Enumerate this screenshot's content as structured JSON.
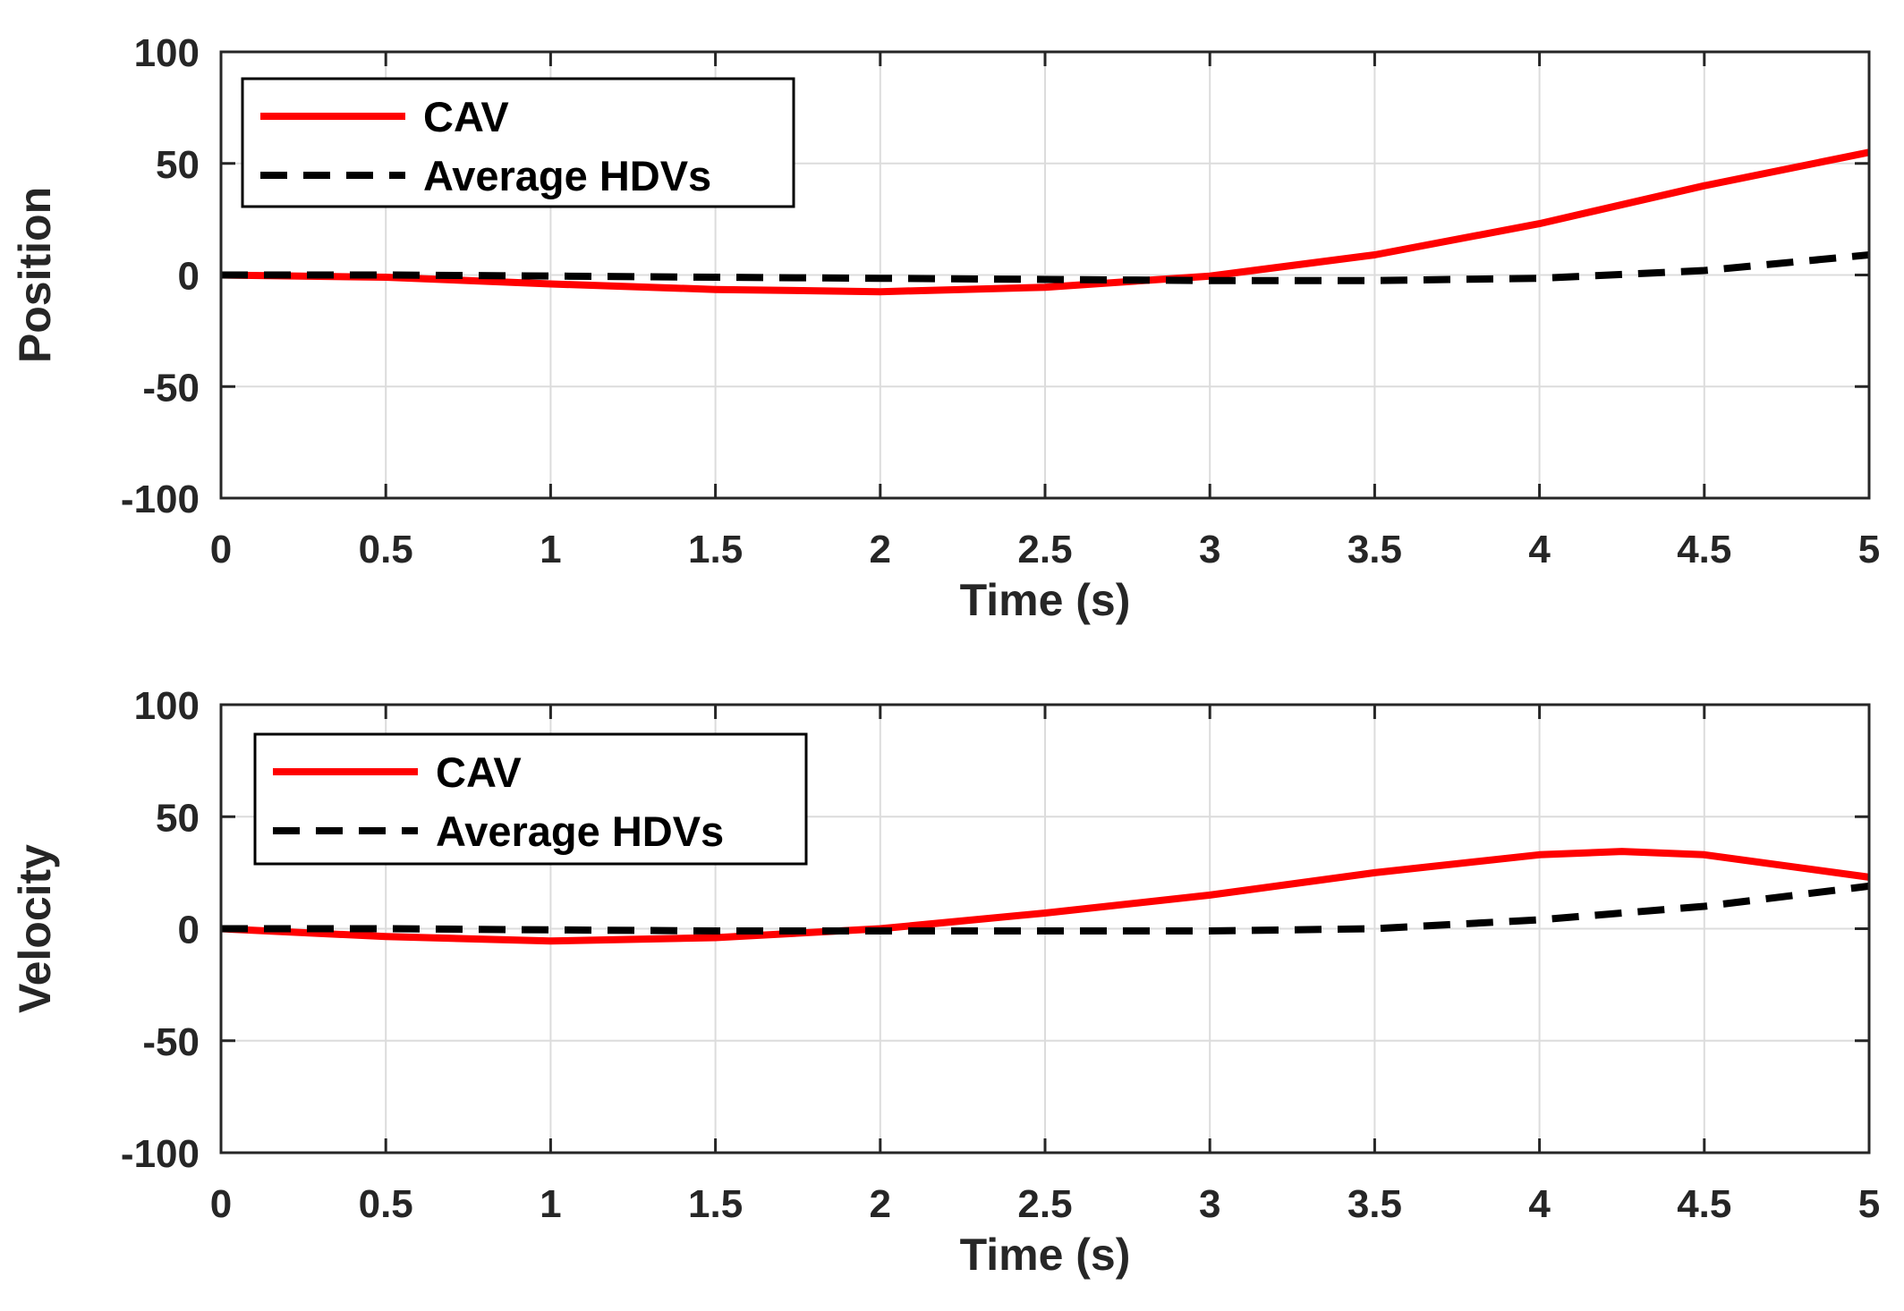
{
  "colors": {
    "cav": "#ff0000",
    "hdv": "#000000",
    "grid": "#dcdcdc",
    "axis": "#262626"
  },
  "chart_data": [
    {
      "type": "line",
      "title": "",
      "xlabel": "Time (s)",
      "ylabel": "Position",
      "xlim": [
        0,
        5
      ],
      "ylim": [
        -100,
        100
      ],
      "xticks": [
        0,
        0.5,
        1,
        1.5,
        2,
        2.5,
        3,
        3.5,
        4,
        4.5,
        5
      ],
      "xtick_labels": [
        "0",
        "0.5",
        "1",
        "1.5",
        "2",
        "2.5",
        "3",
        "3.5",
        "4",
        "4.5",
        "5"
      ],
      "yticks": [
        100,
        50,
        0,
        -50,
        -100
      ],
      "ytick_labels": [
        "100",
        "50",
        "0",
        "-50",
        "-100"
      ],
      "grid": true,
      "legend": "top-left",
      "series": [
        {
          "name": "CAV",
          "style": "solid",
          "color": "#ff0000",
          "x": [
            0,
            0.5,
            1,
            1.5,
            2,
            2.5,
            3,
            3.5,
            4,
            4.5,
            5
          ],
          "y": [
            0,
            -1,
            -4,
            -6.5,
            -7.5,
            -5.5,
            -0.5,
            9,
            23,
            40,
            55
          ]
        },
        {
          "name": "Average HDVs",
          "style": "dashed",
          "color": "#000000",
          "x": [
            0,
            0.5,
            1,
            1.5,
            2,
            2.5,
            3,
            3.5,
            4,
            4.5,
            5
          ],
          "y": [
            0,
            0,
            -0.5,
            -1,
            -1.5,
            -2,
            -2.5,
            -2.5,
            -1.5,
            2,
            9
          ]
        }
      ]
    },
    {
      "type": "line",
      "title": "",
      "xlabel": "Time (s)",
      "ylabel": "Velocity",
      "xlim": [
        0,
        5
      ],
      "ylim": [
        -100,
        100
      ],
      "xticks": [
        0,
        0.5,
        1,
        1.5,
        2,
        2.5,
        3,
        3.5,
        4,
        4.5,
        5
      ],
      "xtick_labels": [
        "0",
        "0.5",
        "1",
        "1.5",
        "2",
        "2.5",
        "3",
        "3.5",
        "4",
        "4.5",
        "5"
      ],
      "yticks": [
        100,
        50,
        0,
        -50,
        -100
      ],
      "ytick_labels": [
        "100",
        "50",
        "0",
        "-50",
        "-100"
      ],
      "grid": true,
      "legend": "top-left",
      "series": [
        {
          "name": "CAV",
          "style": "solid",
          "color": "#ff0000",
          "x": [
            0,
            0.5,
            1,
            1.5,
            2,
            2.5,
            3,
            3.5,
            4,
            4.25,
            4.5,
            5
          ],
          "y": [
            0,
            -3.5,
            -5.5,
            -4,
            0,
            7,
            15,
            25,
            33,
            34.5,
            33,
            23
          ]
        },
        {
          "name": "Average HDVs",
          "style": "dashed",
          "color": "#000000",
          "x": [
            0,
            0.5,
            1,
            1.5,
            2,
            2.5,
            3,
            3.5,
            4,
            4.5,
            5
          ],
          "y": [
            0,
            0,
            -0.5,
            -1,
            -1,
            -1,
            -1,
            0,
            4,
            10,
            19
          ]
        }
      ]
    }
  ]
}
